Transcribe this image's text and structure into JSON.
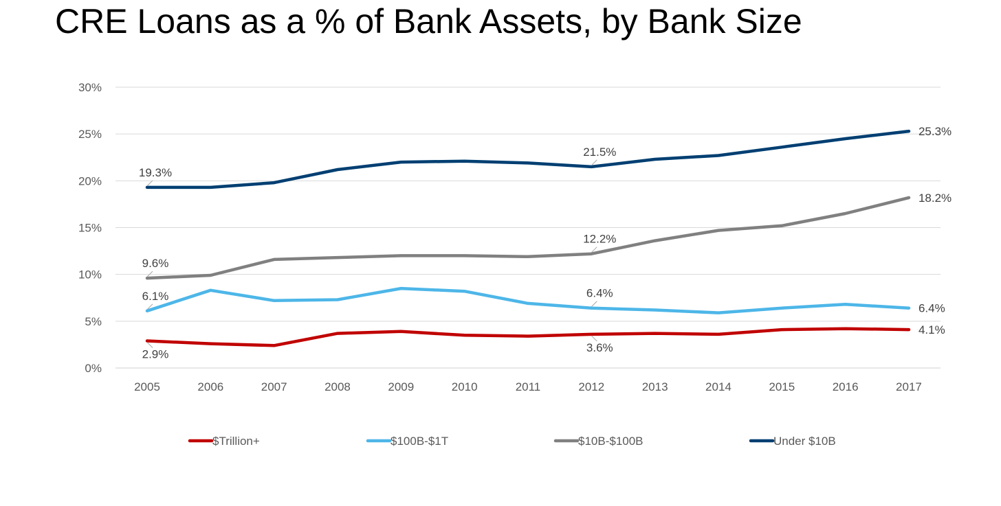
{
  "title": "CRE Loans as a % of Bank Assets, by Bank Size",
  "chart_data": {
    "type": "line",
    "title": "CRE Loans as a % of Bank Assets, by Bank Size",
    "xlabel": "",
    "ylabel": "",
    "ylim": [
      0,
      30
    ],
    "y_tick_step": 5,
    "y_tick_suffix": "%",
    "grid": "horizontal",
    "legend_position": "bottom",
    "x": [
      "2005",
      "2006",
      "2007",
      "2008",
      "2009",
      "2010",
      "2011",
      "2012",
      "2013",
      "2014",
      "2015",
      "2016",
      "2017"
    ],
    "series": [
      {
        "name": "$Trillion+",
        "color": "#C00000",
        "values": [
          2.9,
          2.6,
          2.4,
          3.7,
          3.9,
          3.5,
          3.4,
          3.6,
          3.7,
          3.6,
          4.1,
          4.2,
          4.1
        ],
        "labels": [
          {
            "index": 0,
            "text": "2.9%",
            "pos": "below"
          },
          {
            "index": 7,
            "text": "3.6%",
            "pos": "below"
          },
          {
            "index": 12,
            "text": "4.1%",
            "pos": "right"
          }
        ]
      },
      {
        "name": "$100B-$1T",
        "color": "#4DB6E8",
        "values": [
          6.1,
          8.3,
          7.2,
          7.3,
          8.5,
          8.2,
          6.9,
          6.4,
          6.2,
          5.9,
          6.4,
          6.8,
          6.4
        ],
        "labels": [
          {
            "index": 0,
            "text": "6.1%",
            "pos": "above"
          },
          {
            "index": 7,
            "text": "6.4%",
            "pos": "above"
          },
          {
            "index": 12,
            "text": "6.4%",
            "pos": "right"
          }
        ]
      },
      {
        "name": "$10B-$100B",
        "color": "#808080",
        "values": [
          9.6,
          9.9,
          11.6,
          11.8,
          12.0,
          12.0,
          11.9,
          12.2,
          13.6,
          14.7,
          15.2,
          16.5,
          18.2
        ],
        "labels": [
          {
            "index": 0,
            "text": "9.6%",
            "pos": "above"
          },
          {
            "index": 7,
            "text": "12.2%",
            "pos": "above"
          },
          {
            "index": 12,
            "text": "18.2%",
            "pos": "right"
          }
        ]
      },
      {
        "name": "Under $10B",
        "color": "#003F72",
        "values": [
          19.3,
          19.3,
          19.8,
          21.2,
          22.0,
          22.1,
          21.9,
          21.5,
          22.3,
          22.7,
          23.6,
          24.5,
          25.3
        ],
        "labels": [
          {
            "index": 0,
            "text": "19.3%",
            "pos": "above"
          },
          {
            "index": 7,
            "text": "21.5%",
            "pos": "above"
          },
          {
            "index": 12,
            "text": "25.3%",
            "pos": "right"
          }
        ]
      }
    ]
  }
}
